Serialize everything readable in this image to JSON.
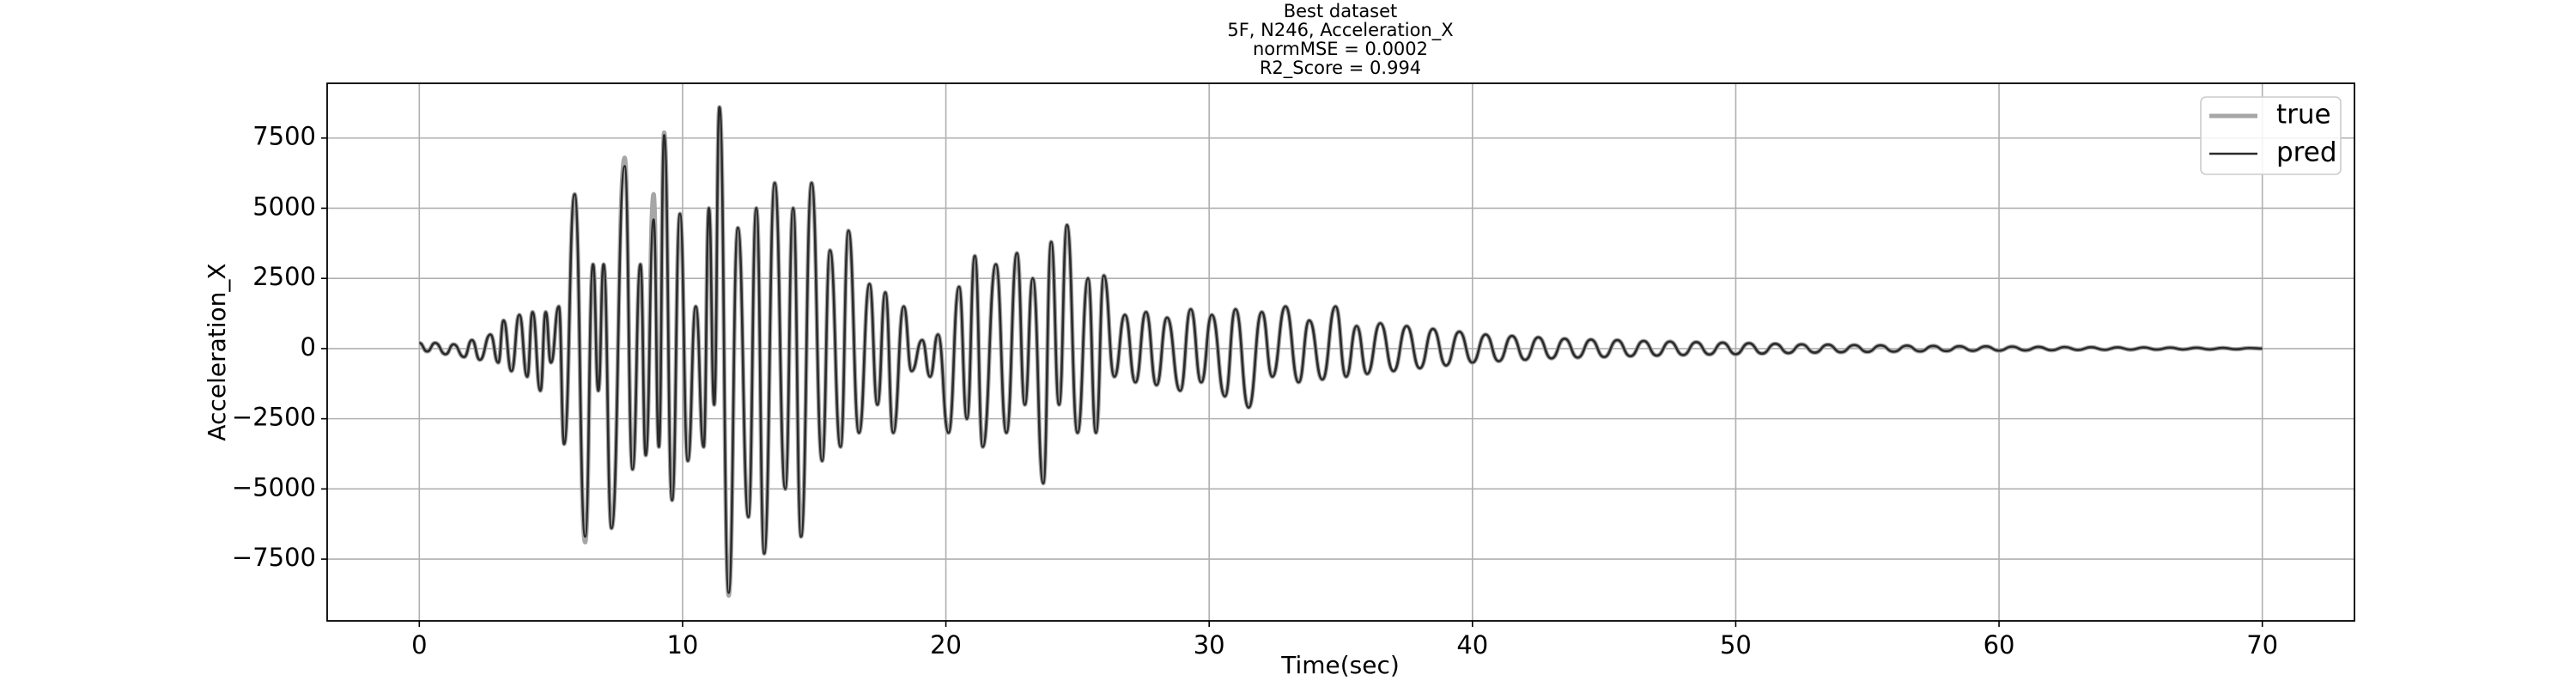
{
  "chart_data": {
    "type": "line",
    "title": [
      "Best dataset",
      "5F, N246, Acceleration_X",
      "normMSE = 0.0002",
      "R2_Score = 0.994"
    ],
    "xlabel": "Time(sec)",
    "ylabel": "Acceleration_X",
    "x": [
      0.0,
      0.3,
      0.6,
      1.0,
      1.3,
      1.7,
      2.0,
      2.3,
      2.7,
      3.0,
      3.2,
      3.5,
      3.8,
      4.1,
      4.3,
      4.6,
      4.8,
      5.0,
      5.3,
      5.5,
      5.9,
      6.3,
      6.6,
      6.8,
      7.0,
      7.3,
      7.8,
      8.1,
      8.4,
      8.6,
      8.9,
      9.1,
      9.3,
      9.6,
      9.9,
      10.2,
      10.5,
      10.8,
      11.0,
      11.2,
      11.4,
      11.75,
      12.1,
      12.5,
      12.8,
      13.1,
      13.5,
      13.9,
      14.2,
      14.5,
      14.9,
      15.3,
      15.6,
      16.0,
      16.3,
      16.7,
      17.1,
      17.4,
      17.7,
      18.0,
      18.4,
      18.7,
      19.1,
      19.4,
      19.7,
      20.1,
      20.5,
      20.8,
      21.1,
      21.4,
      21.9,
      22.3,
      22.7,
      23.0,
      23.3,
      23.7,
      24.0,
      24.3,
      24.6,
      25.0,
      25.4,
      25.7,
      26.0,
      26.4,
      26.8,
      27.2,
      27.6,
      28.0,
      28.4,
      28.9,
      29.3,
      29.7,
      30.1,
      30.6,
      31.0,
      31.5,
      32.0,
      32.4,
      32.9,
      33.4,
      33.8,
      34.3,
      34.8,
      35.2,
      35.6,
      36.0,
      36.5,
      37.0,
      37.5,
      38.0,
      38.5,
      39.0,
      39.5,
      40.0,
      40.5,
      41.0,
      41.5,
      42.0,
      42.5,
      43.0,
      43.5,
      44.0,
      44.5,
      45.0,
      45.5,
      46.0,
      46.5,
      47.0,
      47.5,
      48.0,
      48.5,
      49.0,
      49.5,
      50.0,
      50.5,
      51.0,
      51.5,
      52.0,
      52.5,
      53.0,
      53.5,
      54.0,
      54.5,
      55.0,
      55.5,
      56.0,
      56.5,
      57.0,
      57.5,
      58.0,
      58.5,
      59.0,
      59.5,
      60.0,
      60.5,
      61.0,
      61.5,
      62.0,
      62.5,
      63.0,
      63.5,
      64.0,
      64.5,
      65.0,
      65.5,
      66.0,
      66.5,
      67.0,
      67.5,
      68.0,
      68.5,
      69.0,
      69.5,
      70.0
    ],
    "series": [
      {
        "name": "true",
        "color": "#a6a6a6",
        "values": [
          200,
          -100,
          200,
          -200,
          150,
          -300,
          300,
          -400,
          500,
          -500,
          1000,
          -800,
          1200,
          -1000,
          1300,
          -1500,
          1300,
          -500,
          1500,
          -3400,
          5500,
          -6900,
          3000,
          -1500,
          3000,
          -6400,
          6800,
          -4300,
          3000,
          -3800,
          5500,
          -3500,
          7700,
          -5400,
          4800,
          -4000,
          1500,
          -3500,
          5000,
          -2000,
          8600,
          -8800,
          4300,
          -6000,
          5000,
          -7300,
          5900,
          -5000,
          5000,
          -6700,
          5900,
          -4000,
          3500,
          -3500,
          4200,
          -3000,
          2300,
          -2000,
          2000,
          -3000,
          1500,
          -800,
          300,
          -1000,
          500,
          -3000,
          2200,
          -2500,
          3300,
          -3500,
          3000,
          -3000,
          3400,
          -2000,
          2500,
          -4800,
          3800,
          -2000,
          4400,
          -3000,
          2500,
          -3000,
          2600,
          -1000,
          1200,
          -1200,
          1300,
          -1300,
          1100,
          -1500,
          1400,
          -1200,
          1200,
          -1700,
          1400,
          -2100,
          1300,
          -1000,
          1500,
          -1200,
          1000,
          -1100,
          1500,
          -1000,
          800,
          -900,
          900,
          -800,
          800,
          -700,
          700,
          -600,
          600,
          -500,
          500,
          -450,
          450,
          -400,
          400,
          -350,
          350,
          -320,
          320,
          -300,
          300,
          -270,
          270,
          -250,
          250,
          -230,
          230,
          -210,
          210,
          -200,
          190,
          -180,
          170,
          -160,
          150,
          -145,
          140,
          -130,
          125,
          -120,
          115,
          -110,
          105,
          -100,
          95,
          -90,
          85,
          -80,
          80,
          -75,
          70,
          -65,
          60,
          -60,
          55,
          -50,
          50,
          -45,
          45,
          -40,
          40,
          -35,
          35,
          -30,
          30,
          -30,
          25,
          -25,
          20,
          0
        ]
      },
      {
        "name": "pred",
        "color": "#2b2b2b",
        "values": [
          200,
          -100,
          200,
          -200,
          150,
          -300,
          300,
          -400,
          500,
          -500,
          1000,
          -800,
          1200,
          -1000,
          1300,
          -1500,
          1300,
          -500,
          1500,
          -3400,
          5500,
          -6700,
          3000,
          -1500,
          3000,
          -6400,
          6500,
          -4300,
          3000,
          -3800,
          4600,
          -3500,
          7600,
          -5400,
          4800,
          -4000,
          1500,
          -3500,
          5000,
          -2000,
          8600,
          -8700,
          4300,
          -6000,
          5000,
          -7300,
          5900,
          -5000,
          5000,
          -6700,
          5900,
          -4000,
          3500,
          -3500,
          4200,
          -3000,
          2300,
          -2000,
          2000,
          -3000,
          1500,
          -800,
          300,
          -1000,
          500,
          -3000,
          2200,
          -2500,
          3300,
          -3500,
          3000,
          -3000,
          3400,
          -2000,
          2500,
          -4800,
          3800,
          -2000,
          4400,
          -3000,
          2500,
          -3000,
          2600,
          -1000,
          1200,
          -1200,
          1300,
          -1300,
          1100,
          -1500,
          1400,
          -1200,
          1200,
          -1700,
          1400,
          -2100,
          1300,
          -1000,
          1500,
          -1200,
          1000,
          -1100,
          1500,
          -1000,
          800,
          -900,
          900,
          -800,
          800,
          -700,
          700,
          -600,
          600,
          -500,
          500,
          -450,
          450,
          -400,
          400,
          -350,
          350,
          -320,
          320,
          -300,
          300,
          -270,
          270,
          -250,
          250,
          -230,
          230,
          -210,
          210,
          -200,
          190,
          -180,
          170,
          -160,
          150,
          -145,
          140,
          -130,
          125,
          -120,
          115,
          -110,
          105,
          -100,
          95,
          -90,
          85,
          -80,
          80,
          -75,
          70,
          -65,
          60,
          -60,
          55,
          -50,
          50,
          -45,
          45,
          -40,
          40,
          -35,
          35,
          -30,
          30,
          -30,
          25,
          -25,
          20,
          0
        ]
      }
    ],
    "xlim": [
      -3.5,
      73.5
    ],
    "xticks": [
      0,
      10,
      20,
      30,
      40,
      50,
      60,
      70
    ],
    "ylim": [
      -9700,
      9450
    ],
    "yticks": [
      {
        "value": -7500,
        "label": "−7500"
      },
      {
        "value": -5000,
        "label": "−5000"
      },
      {
        "value": -2500,
        "label": "−2500"
      },
      0,
      2500,
      5000,
      7500
    ],
    "grid": true,
    "legend": "upper right"
  }
}
